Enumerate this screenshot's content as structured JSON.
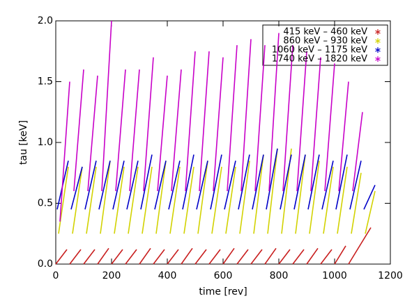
{
  "chart_data": {
    "type": "line",
    "xlabel": "time [rev]",
    "ylabel": "tau [keV]",
    "xlim": [
      0,
      1200
    ],
    "xticks": [
      0,
      200,
      400,
      600,
      800,
      1000,
      1200
    ],
    "ylim": [
      0,
      2
    ],
    "yticks": [
      {
        "value": 0,
        "label": "0.0"
      },
      0.5,
      {
        "value": 1,
        "label": "1.0"
      },
      1.5,
      {
        "value": 2,
        "label": "2.0"
      }
    ],
    "legend": "upper right",
    "series": [
      {
        "name": "415 keV – 460 keV",
        "color": "#c81e1e",
        "x": [
          0,
          40,
          null,
          50,
          90,
          null,
          100,
          140,
          null,
          150,
          190,
          null,
          200,
          240,
          null,
          250,
          290,
          null,
          300,
          340,
          null,
          350,
          390,
          null,
          400,
          440,
          null,
          450,
          490,
          null,
          500,
          540,
          null,
          550,
          590,
          null,
          600,
          640,
          null,
          650,
          690,
          null,
          700,
          740,
          null,
          750,
          790,
          null,
          800,
          840,
          null,
          850,
          890,
          null,
          900,
          940,
          null,
          950,
          990,
          null,
          1000,
          1040,
          null,
          1050,
          1130
        ],
        "values": [
          0,
          0.12,
          null,
          0,
          0.12,
          null,
          0,
          0.12,
          null,
          0,
          0.13,
          null,
          0,
          0.12,
          null,
          0,
          0.12,
          null,
          0,
          0.13,
          null,
          0,
          0.12,
          null,
          0,
          0.12,
          null,
          0,
          0.13,
          null,
          0,
          0.12,
          null,
          0,
          0.12,
          null,
          0,
          0.13,
          null,
          0,
          0.12,
          null,
          0,
          0.12,
          null,
          0,
          0.13,
          null,
          0,
          0.12,
          null,
          0,
          0.12,
          null,
          0,
          0.13,
          null,
          0,
          0.12,
          null,
          0,
          0.15,
          null,
          0,
          0.3
        ]
      },
      {
        "name": "860 keV – 930 keV",
        "color": "#d2d200",
        "x": [
          10,
          45,
          null,
          60,
          95,
          null,
          110,
          145,
          null,
          160,
          195,
          null,
          210,
          245,
          null,
          260,
          295,
          null,
          310,
          345,
          null,
          360,
          395,
          null,
          410,
          445,
          null,
          460,
          495,
          null,
          510,
          545,
          null,
          560,
          595,
          null,
          610,
          645,
          null,
          660,
          695,
          null,
          710,
          745,
          null,
          760,
          795,
          null,
          810,
          845,
          null,
          860,
          895,
          null,
          910,
          945,
          null,
          960,
          995,
          null,
          1010,
          1045,
          null,
          1060,
          1095,
          null,
          1110,
          1145
        ],
        "values": [
          0.25,
          0.8,
          null,
          0.25,
          0.8,
          null,
          0.25,
          0.8,
          null,
          0.25,
          0.85,
          null,
          0.25,
          0.8,
          null,
          0.25,
          0.8,
          null,
          0.25,
          0.8,
          null,
          0.25,
          0.85,
          null,
          0.25,
          0.8,
          null,
          0.25,
          0.8,
          null,
          0.25,
          0.85,
          null,
          0.25,
          0.8,
          null,
          0.25,
          0.8,
          null,
          0.25,
          0.85,
          null,
          0.25,
          0.9,
          null,
          0.25,
          0.95,
          null,
          0.25,
          0.95,
          null,
          0.25,
          0.9,
          null,
          0.25,
          0.85,
          null,
          0.25,
          0.8,
          null,
          0.25,
          0.8,
          null,
          0.25,
          0.75,
          null,
          0.25,
          0.6
        ]
      },
      {
        "name": "1060 keV – 1175 keV",
        "color": "#0000c8",
        "x": [
          5,
          45,
          null,
          55,
          95,
          null,
          105,
          145,
          null,
          155,
          195,
          null,
          205,
          245,
          null,
          255,
          295,
          null,
          305,
          345,
          null,
          355,
          395,
          null,
          405,
          445,
          null,
          455,
          495,
          null,
          505,
          545,
          null,
          555,
          595,
          null,
          605,
          645,
          null,
          655,
          695,
          null,
          705,
          745,
          null,
          755,
          795,
          null,
          805,
          845,
          null,
          855,
          895,
          null,
          905,
          945,
          null,
          955,
          995,
          null,
          1005,
          1045,
          null,
          1055,
          1095,
          null,
          1105,
          1145
        ],
        "values": [
          0.45,
          0.85,
          null,
          0.45,
          0.8,
          null,
          0.45,
          0.85,
          null,
          0.45,
          0.85,
          null,
          0.45,
          0.85,
          null,
          0.45,
          0.85,
          null,
          0.45,
          0.9,
          null,
          0.45,
          0.85,
          null,
          0.45,
          0.85,
          null,
          0.45,
          0.9,
          null,
          0.45,
          0.85,
          null,
          0.45,
          0.9,
          null,
          0.45,
          0.85,
          null,
          0.45,
          0.9,
          null,
          0.45,
          0.9,
          null,
          0.45,
          0.95,
          null,
          0.45,
          0.9,
          null,
          0.45,
          0.9,
          null,
          0.45,
          0.9,
          null,
          0.45,
          0.85,
          null,
          0.45,
          0.9,
          null,
          0.45,
          0.85,
          null,
          0.45,
          0.65
        ]
      },
      {
        "name": "1740 keV – 1820 keV",
        "color": "#c800c8",
        "x": [
          15,
          50,
          null,
          65,
          100,
          null,
          115,
          150,
          null,
          165,
          200,
          null,
          215,
          250,
          null,
          265,
          300,
          null,
          315,
          350,
          null,
          365,
          400,
          null,
          415,
          450,
          null,
          465,
          500,
          null,
          515,
          550,
          null,
          565,
          600,
          null,
          615,
          650,
          null,
          665,
          700,
          null,
          715,
          750,
          null,
          765,
          800,
          null,
          815,
          850,
          null,
          865,
          900,
          null,
          915,
          950,
          null,
          965,
          1000,
          null,
          1015,
          1050,
          null,
          1065,
          1100
        ],
        "values": [
          0.35,
          1.5,
          null,
          0.6,
          1.6,
          null,
          0.6,
          1.55,
          null,
          0.6,
          2.0,
          null,
          0.6,
          1.6,
          null,
          0.6,
          1.6,
          null,
          0.6,
          1.7,
          null,
          0.6,
          1.55,
          null,
          0.6,
          1.6,
          null,
          0.6,
          1.75,
          null,
          0.6,
          1.75,
          null,
          0.6,
          1.7,
          null,
          0.6,
          1.8,
          null,
          0.6,
          1.85,
          null,
          0.6,
          1.8,
          null,
          0.6,
          1.9,
          null,
          0.6,
          1.8,
          null,
          0.6,
          1.75,
          null,
          0.6,
          1.7,
          null,
          0.6,
          1.65,
          null,
          0.6,
          1.5,
          null,
          0.6,
          1.25
        ]
      }
    ]
  }
}
